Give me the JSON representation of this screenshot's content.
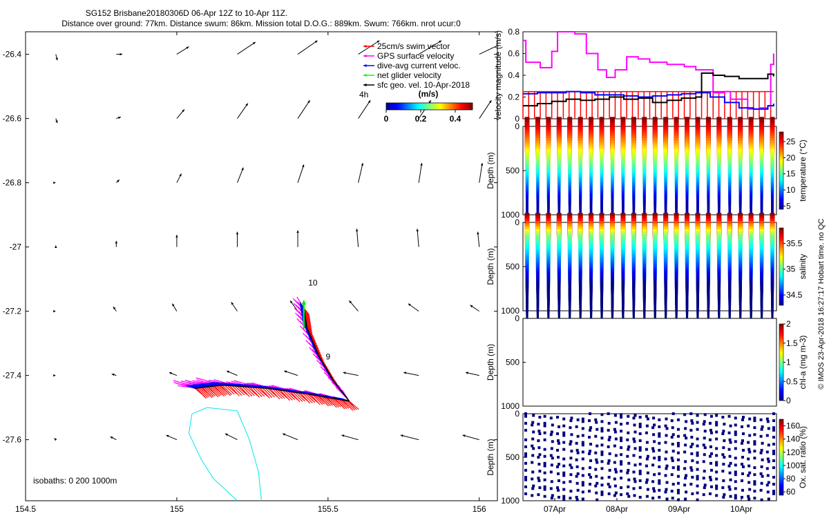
{
  "header": {
    "title": "SG152 Brisbane20180306D 06-Apr 12Z to 10-Apr 11Z.",
    "subtitle": "Distance over ground: 77km. Distance swum: 86km. Mission total D.O.G.: 889km. Swum: 766km. nrot ucur:0"
  },
  "footer_note": "isobaths: 0   200  1000m",
  "vertical_note": "© IMOS 23-Apr-2018 16:27:17 Hobart time. no QC",
  "chart_data": [
    {
      "type": "map",
      "xticks": [
        "154.5",
        "155",
        "155.5",
        "156"
      ],
      "xtick_values": [
        154.5,
        155.0,
        155.5,
        156.0
      ],
      "yticks": [
        "-26.4",
        "-26.6",
        "-26.8",
        "-27",
        "-27.2",
        "-27.4",
        "-27.6"
      ],
      "ytick_values": [
        -26.4,
        -26.6,
        -26.8,
        -27.0,
        -27.2,
        -27.4,
        -27.6
      ],
      "xlim": [
        154.5,
        156.06
      ],
      "ylim": [
        -27.79,
        -26.33
      ],
      "legend": {
        "placement": "top-right",
        "items": [
          {
            "label": "25cm/s swim vector",
            "color": "#ff0000"
          },
          {
            "label": "GPS surface velocity",
            "color": "#ff00ff"
          },
          {
            "label": "dive-avg current veloc.",
            "color": "#0000ff"
          },
          {
            "label": "net glider velocity",
            "color": "#00ff00"
          },
          {
            "label": "sfc geo. vel. 10-Apr-2018",
            "color": "#000000"
          }
        ]
      },
      "scale_label": "4h",
      "colorbar": {
        "label": "(m/s)",
        "ticks": [
          "0",
          "0.2",
          "0.4"
        ],
        "range": [
          0,
          0.5
        ]
      },
      "day_labels": [
        {
          "text": "10",
          "lon": 155.45,
          "lat": -27.12
        },
        {
          "text": "9",
          "lon": 155.5,
          "lat": -27.35
        }
      ],
      "current_vectors": {
        "lons": [
          154.6,
          154.8,
          155.0,
          155.2,
          155.4,
          155.6,
          155.8,
          156.0
        ],
        "lats": [
          -26.4,
          -26.6,
          -26.8,
          -27.0,
          -27.2,
          -27.4,
          -27.6
        ],
        "u": [
          [
            0.01,
            0.04,
            0.08,
            0.12,
            0.13,
            0.14,
            0.15,
            0.19
          ],
          [
            0.01,
            0.03,
            0.05,
            0.07,
            0.08,
            0.08,
            0.08,
            0.08
          ],
          [
            0.0,
            0.02,
            0.03,
            0.04,
            0.04,
            0.03,
            0.02,
            0.02
          ],
          [
            0.0,
            0.0,
            0.0,
            0.0,
            0.0,
            -0.01,
            -0.01,
            -0.01
          ],
          [
            0.0,
            -0.02,
            -0.03,
            -0.04,
            -0.05,
            -0.06,
            -0.07,
            -0.06
          ],
          [
            0.0,
            -0.03,
            -0.05,
            -0.07,
            -0.09,
            -0.1,
            -0.1,
            -0.09
          ],
          [
            -0.01,
            -0.04,
            -0.07,
            -0.08,
            -0.1,
            -0.11,
            -0.12,
            -0.11
          ]
        ],
        "v": [
          [
            -0.04,
            0.0,
            0.05,
            0.08,
            0.09,
            0.09,
            0.09,
            0.09
          ],
          [
            -0.03,
            0.01,
            0.06,
            0.1,
            0.12,
            0.12,
            0.12,
            0.12
          ],
          [
            0.0,
            0.02,
            0.06,
            0.1,
            0.12,
            0.13,
            0.13,
            0.13
          ],
          [
            0.01,
            0.04,
            0.08,
            0.1,
            0.11,
            0.12,
            0.12,
            0.1
          ],
          [
            0.0,
            0.03,
            0.05,
            0.06,
            0.07,
            0.07,
            0.05,
            0.04
          ],
          [
            0.0,
            0.01,
            0.02,
            0.03,
            0.03,
            0.02,
            0.02,
            0.02
          ],
          [
            0.01,
            0.02,
            0.03,
            0.04,
            0.04,
            0.03,
            0.03,
            0.03
          ]
        ]
      },
      "track": [
        {
          "lon": 155.57,
          "lat": -27.48
        },
        {
          "lon": 155.52,
          "lat": -27.42
        },
        {
          "lon": 155.47,
          "lat": -27.34
        },
        {
          "lon": 155.43,
          "lat": -27.25
        },
        {
          "lon": 155.42,
          "lat": -27.19
        }
      ],
      "track_west": [
        {
          "lon": 155.57,
          "lat": -27.48
        },
        {
          "lon": 155.45,
          "lat": -27.46
        },
        {
          "lon": 155.3,
          "lat": -27.44
        },
        {
          "lon": 155.15,
          "lat": -27.43
        },
        {
          "lon": 155.06,
          "lat": -27.44
        }
      ],
      "isobath": [
        {
          "lon": 155.1,
          "lat": -27.5
        },
        {
          "lon": 155.05,
          "lat": -27.52
        },
        {
          "lon": 155.04,
          "lat": -27.58
        },
        {
          "lon": 155.08,
          "lat": -27.66
        },
        {
          "lon": 155.12,
          "lat": -27.72
        },
        {
          "lon": 155.2,
          "lat": -27.79
        }
      ],
      "isobath_b": [
        {
          "lon": 155.1,
          "lat": -27.5
        },
        {
          "lon": 155.2,
          "lat": -27.51
        },
        {
          "lon": 155.24,
          "lat": -27.6
        },
        {
          "lon": 155.27,
          "lat": -27.7
        },
        {
          "lon": 155.28,
          "lat": -27.79
        }
      ]
    },
    {
      "type": "line",
      "ylabel": "velocity magnitude (m/s)",
      "yticks": [
        "0",
        "0.2",
        "0.4",
        "0.6",
        "0.8"
      ],
      "ylim": [
        0,
        0.8
      ],
      "xlim": [
        0,
        4.4
      ],
      "series": [
        {
          "color": "#ff00ff",
          "x": [
            0,
            0.05,
            0.3,
            0.5,
            0.6,
            0.9,
            1.1,
            1.3,
            1.45,
            1.6,
            1.8,
            2.0,
            2.2,
            2.5,
            2.8,
            3.0,
            3.3,
            3.5,
            3.6,
            3.9,
            4.1,
            4.25,
            4.3,
            4.35
          ],
          "y": [
            0.72,
            0.52,
            0.47,
            0.62,
            0.8,
            0.78,
            0.6,
            0.45,
            0.38,
            0.45,
            0.57,
            0.55,
            0.52,
            0.5,
            0.48,
            0.45,
            0.24,
            0.25,
            0.18,
            0.09,
            0.1,
            0.12,
            0.5,
            0.6
          ]
        },
        {
          "color": "#0000ff",
          "x": [
            0,
            0.25,
            0.5,
            0.75,
            1.0,
            1.25,
            1.5,
            1.75,
            2.0,
            2.25,
            2.5,
            2.75,
            3.0,
            3.25,
            3.5,
            3.75,
            4.0,
            4.25,
            4.35
          ],
          "y": [
            0.23,
            0.24,
            0.24,
            0.25,
            0.24,
            0.22,
            0.22,
            0.21,
            0.2,
            0.21,
            0.22,
            0.23,
            0.24,
            0.2,
            0.15,
            0.1,
            0.09,
            0.12,
            0.14
          ]
        },
        {
          "color": "#000000",
          "x": [
            0,
            0.25,
            0.5,
            0.75,
            1.0,
            1.25,
            1.5,
            1.75,
            2.0,
            2.25,
            2.5,
            2.75,
            3.0,
            3.1,
            3.3,
            3.5,
            3.75,
            4.0,
            4.25,
            4.35
          ],
          "y": [
            0.12,
            0.14,
            0.16,
            0.18,
            0.17,
            0.18,
            0.2,
            0.18,
            0.19,
            0.15,
            0.17,
            0.19,
            0.2,
            0.42,
            0.4,
            0.39,
            0.37,
            0.37,
            0.41,
            0.39
          ]
        },
        {
          "color": "#ff0000",
          "x": [
            0,
            4.35
          ],
          "y": [
            0.25,
            0.25
          ]
        }
      ]
    },
    {
      "type": "scatter",
      "ylabel": "Depth (m)",
      "yticks": [
        "0",
        "500",
        "1000"
      ],
      "ylim": [
        1000,
        0
      ],
      "colorbar": {
        "label": "temperature (°C)",
        "ticks": [
          "5",
          "10",
          "15",
          "20",
          "25"
        ],
        "range": [
          4,
          28
        ]
      },
      "profiles": 24
    },
    {
      "type": "scatter",
      "ylabel": "Depth (m)",
      "yticks": [
        "0",
        "500",
        "1000"
      ],
      "ylim": [
        1000,
        0
      ],
      "colorbar": {
        "label": "salinity",
        "ticks": [
          "34.5",
          "35",
          "35.5"
        ],
        "range": [
          34.3,
          35.8
        ]
      },
      "profiles": 24
    },
    {
      "type": "scatter",
      "ylabel": "Depth (m)",
      "yticks": [
        "0",
        "500",
        "1000"
      ],
      "ylim": [
        1000,
        0
      ],
      "colorbar": {
        "label": "chl-a (mg m-3)",
        "ticks": [
          "0",
          "0.5",
          "1",
          "1.5",
          "2"
        ],
        "range": [
          0,
          2
        ]
      },
      "profiles": 0
    },
    {
      "type": "scatter",
      "ylabel": "Depth (m)",
      "yticks": [
        "0",
        "500",
        "1000"
      ],
      "ylim": [
        1000,
        0
      ],
      "colorbar": {
        "label": "Ox. sat. ratio (%)",
        "ticks": [
          "60",
          "80",
          "100",
          "120",
          "140",
          "160"
        ],
        "range": [
          55,
          170
        ]
      },
      "xticks": [
        "07Apr",
        "08Apr",
        "09Apr",
        "10Apr"
      ],
      "profiles": 40
    }
  ]
}
